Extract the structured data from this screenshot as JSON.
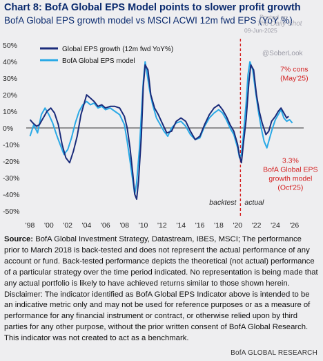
{
  "header": {
    "title": "Chart 8: BofA Global EPS Model points to slower profit growth",
    "subtitle": "BofA Global EPS growth model vs MSCI ACWI 12m fwd EPS (YoY %)"
  },
  "watermarks": {
    "posted_on": "Posted on",
    "brand": "The Daily Shot",
    "date": "09-Jun-2025",
    "handle": "@SoberLook"
  },
  "chart_data": {
    "type": "line",
    "title": "Chart 8: BofA Global EPS Model points to slower profit growth",
    "subtitle": "BofA Global EPS growth model vs MSCI ACWI 12m fwd EPS (YoY %)",
    "x_tick_labels": [
      "'98",
      "'00",
      "'02",
      "'04",
      "'06",
      "'08",
      "'10",
      "'12",
      "'14",
      "'16",
      "'18",
      "'20",
      "'22",
      "'24",
      "'26"
    ],
    "x_ticks": [
      1998,
      2000,
      2002,
      2004,
      2006,
      2008,
      2010,
      2012,
      2014,
      2016,
      2018,
      2020,
      2022,
      2024,
      2026
    ],
    "xlim": [
      1997.6,
      2027.0
    ],
    "y_ticks": [
      -50,
      -40,
      -30,
      -20,
      -10,
      0,
      10,
      20,
      30,
      40,
      50
    ],
    "y_tick_labels": [
      "-50%",
      "-40%",
      "-30%",
      "-20%",
      "-10%",
      "0%",
      "10%",
      "20%",
      "30%",
      "40%",
      "50%"
    ],
    "ylim": [
      -53,
      53
    ],
    "grid": false,
    "legend_position": "top-left",
    "colors": {
      "dark": "#1a2b7a",
      "light": "#29a9e6",
      "accent": "#d42020",
      "zero_line": "#333333"
    },
    "vline": {
      "x": 2020.3,
      "color": "#d42020",
      "style": "dashed"
    },
    "period_labels": {
      "left": "backtest",
      "right": "actual"
    },
    "annotations": [
      {
        "x": 2026.0,
        "y": 34,
        "lines": [
          "7% cons",
          "(May'25)"
        ],
        "color": "#d42020"
      },
      {
        "x": 2025.6,
        "y": -21,
        "lines": [
          "3.3%",
          "BofA Global EPS",
          "growth model",
          "(Oct'25)"
        ],
        "color": "#d42020"
      }
    ],
    "series": [
      {
        "name": "Global EPS growth (12m fwd YoY%)",
        "color": "#1a2b7a",
        "x": [
          1998.0,
          1998.3,
          1998.7,
          1999.0,
          1999.4,
          1999.8,
          2000.2,
          2000.6,
          2001.0,
          2001.4,
          2001.8,
          2002.2,
          2002.6,
          2003.0,
          2003.4,
          2003.8,
          2004.0,
          2004.4,
          2004.8,
          2005.2,
          2005.6,
          2006.0,
          2006.5,
          2007.0,
          2007.5,
          2008.0,
          2008.3,
          2008.6,
          2008.9,
          2009.1,
          2009.3,
          2009.5,
          2009.8,
          2010.0,
          2010.2,
          2010.5,
          2010.8,
          2011.2,
          2011.6,
          2012.0,
          2012.5,
          2013.0,
          2013.5,
          2014.0,
          2014.5,
          2015.0,
          2015.5,
          2016.0,
          2016.5,
          2017.0,
          2017.5,
          2018.0,
          2018.4,
          2018.8,
          2019.2,
          2019.6,
          2020.0,
          2020.2,
          2020.4,
          2020.6,
          2020.9,
          2021.2,
          2021.4,
          2021.7,
          2022.0,
          2022.3,
          2022.6,
          2023.0,
          2023.3,
          2023.6,
          2024.0,
          2024.3,
          2024.6,
          2024.9,
          2025.2,
          2025.4
        ],
        "y": [
          5,
          3,
          1,
          2,
          6,
          10,
          12,
          9,
          2,
          -10,
          -18,
          -21,
          -14,
          -5,
          8,
          16,
          20,
          18,
          16,
          13,
          14,
          12,
          13,
          13,
          12,
          7,
          0,
          -12,
          -28,
          -40,
          -43,
          -32,
          -5,
          25,
          38,
          35,
          20,
          12,
          8,
          3,
          -3,
          -2,
          4,
          6,
          4,
          -2,
          -7,
          -5,
          2,
          8,
          12,
          14,
          11,
          7,
          2,
          -2,
          -10,
          -17,
          -21,
          -10,
          5,
          28,
          38,
          35,
          20,
          10,
          3,
          -4,
          -2,
          4,
          7,
          10,
          12,
          9,
          6,
          7
        ]
      },
      {
        "name": "BofA Global EPS model",
        "color": "#29a9e6",
        "x": [
          1998.0,
          1998.4,
          1998.8,
          1999.2,
          1999.6,
          2000.0,
          2000.4,
          2000.8,
          2001.2,
          2001.6,
          2002.0,
          2002.4,
          2002.8,
          2003.2,
          2003.6,
          2004.0,
          2004.4,
          2004.8,
          2005.2,
          2005.6,
          2006.0,
          2006.5,
          2007.0,
          2007.5,
          2008.0,
          2008.3,
          2008.6,
          2008.9,
          2009.1,
          2009.3,
          2009.6,
          2009.8,
          2010.0,
          2010.2,
          2010.4,
          2010.7,
          2011.0,
          2011.4,
          2011.8,
          2012.2,
          2012.6,
          2013.0,
          2013.5,
          2014.0,
          2014.5,
          2015.0,
          2015.5,
          2016.0,
          2016.5,
          2017.0,
          2017.5,
          2018.0,
          2018.4,
          2018.8,
          2019.2,
          2019.6,
          2020.0,
          2020.2,
          2020.4,
          2020.6,
          2020.9,
          2021.1,
          2021.3,
          2021.6,
          2021.9,
          2022.2,
          2022.5,
          2022.8,
          2023.1,
          2023.4,
          2023.7,
          2024.0,
          2024.3,
          2024.6,
          2024.9,
          2025.2,
          2025.5,
          2025.8
        ],
        "y": [
          -5,
          2,
          -3,
          8,
          12,
          8,
          3,
          -4,
          -10,
          -16,
          -13,
          -6,
          3,
          10,
          14,
          16,
          14,
          15,
          12,
          13,
          11,
          12,
          10,
          8,
          2,
          -8,
          -20,
          -32,
          -40,
          -33,
          -12,
          8,
          28,
          40,
          33,
          22,
          14,
          6,
          2,
          -2,
          -5,
          0,
          3,
          4,
          1,
          -4,
          -7,
          -6,
          1,
          6,
          9,
          11,
          9,
          5,
          0,
          -4,
          -12,
          -18,
          -16,
          -5,
          15,
          32,
          40,
          35,
          22,
          10,
          0,
          -8,
          -12,
          -6,
          0,
          5,
          8,
          11,
          6,
          4,
          5,
          3
        ]
      }
    ]
  },
  "footer_text": {
    "source_label": "Source:",
    "source_body": " BofA Global Investment Strategy, Datastream, IBES, MSCI; The performance prior to March 2018 is back-tested and does not represent the actual performance of any account or fund. Back-tested performance depicts the theoretical (not actual) performance of a particular strategy over the time period indicated. No representation is being made that any actual portfolio is likely to have achieved returns similar to those shown herein.",
    "disclaimer": "Disclaimer: The indicator identified as BofA Global EPS Indicator above is intended to be an indicative metric only and may not be used for reference purposes or as a measure of performance for any financial instrument or contract, or otherwise relied upon by third parties for any other purpose, without the prior written consent of BofA Global Research. This indicator was not created to act as a benchmark.",
    "brand": "BofA GLOBAL RESEARCH"
  }
}
